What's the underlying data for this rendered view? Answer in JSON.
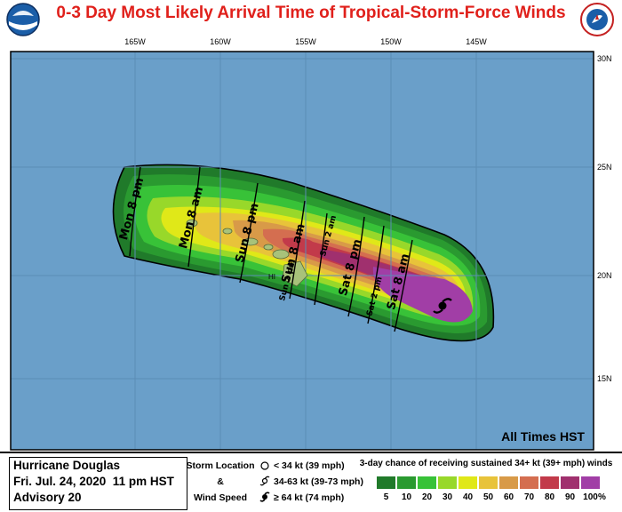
{
  "title": "0-3 Day Most Likely Arrival Time of Tropical-Storm-Force Winds",
  "logos": {
    "left": "noaa-logo",
    "right": "national-weather-service-logo"
  },
  "map": {
    "longitude_labels": [
      "165W",
      "160W",
      "155W",
      "150W",
      "145W"
    ],
    "latitude_labels": [
      "30N",
      "25N",
      "20N",
      "15N"
    ],
    "island_label": "HI",
    "all_times_label": "All Times HST",
    "arrival_labels": [
      {
        "text": "Mon 8 pm"
      },
      {
        "text": "Mon 8 am"
      },
      {
        "text": "Sun 8 pm"
      },
      {
        "text": "Sun 2 pm"
      },
      {
        "text": "Sun 8 am"
      },
      {
        "text": "Sun 2 am"
      },
      {
        "text": "Sat 8 pm"
      },
      {
        "text": "Sat 2 pm"
      },
      {
        "text": "Sat 8 am"
      }
    ],
    "ocean_color": "#6a9fc9",
    "land_color": "#a8c27a"
  },
  "footer": {
    "storm_name": "Hurricane Douglas",
    "issue_time": "Fri. Jul. 24, 2020  11 pm HST",
    "advisory": "Advisory 20",
    "key_labels": [
      "Storm Location",
      "&",
      "Wind Speed"
    ],
    "key_items": [
      {
        "symbol": "open-circle-icon",
        "text": "< 34 kt (39 mph)"
      },
      {
        "symbol": "tropical-storm-icon",
        "text": "34-63 kt (39-73 mph)"
      },
      {
        "symbol": "hurricane-icon",
        "text": "≥ 64 kt (74 mph)"
      }
    ],
    "probability_title": "3-day chance of receiving sustained 34+ kt (39+ mph) winds",
    "probability_scale": [
      {
        "label": "5",
        "color": "#207a2a"
      },
      {
        "label": "10",
        "color": "#2a9a30"
      },
      {
        "label": "20",
        "color": "#38c238"
      },
      {
        "label": "30",
        "color": "#98d82a"
      },
      {
        "label": "40",
        "color": "#e0e818"
      },
      {
        "label": "50",
        "color": "#e8c33a"
      },
      {
        "label": "60",
        "color": "#d89a48"
      },
      {
        "label": "70",
        "color": "#d46e50"
      },
      {
        "label": "80",
        "color": "#c23a4a"
      },
      {
        "label": "90",
        "color": "#a0306e"
      },
      {
        "label": "100",
        "color": "#a13ea6"
      }
    ],
    "percent_sign": "%"
  }
}
